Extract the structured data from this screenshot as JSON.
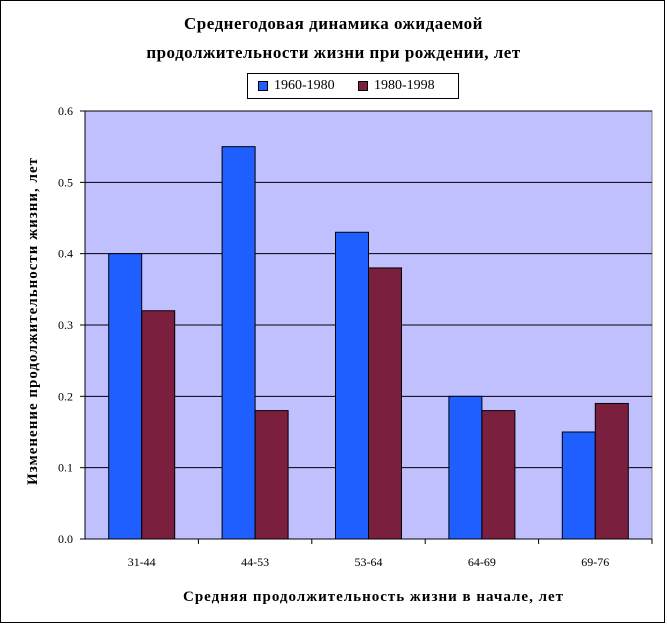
{
  "chart_data": {
    "type": "bar",
    "title": "Среднегодовая динамика ожидаемой продолжительности жизни при рождении, лет",
    "title_lines": [
      "Среднегодовая динамика ожидаемой",
      "продолжительности жизни при рождении, лет"
    ],
    "xlabel": "Средняя продолжительность жизни в начале, лет",
    "ylabel": "Изменение продолжительности жизни, лет",
    "categories": [
      "31-44",
      "44-53",
      "53-64",
      "64-69",
      "69-76"
    ],
    "series": [
      {
        "name": "1960-1980",
        "color": "#1f5fff",
        "values": [
          0.4,
          0.55,
          0.43,
          0.2,
          0.15
        ]
      },
      {
        "name": "1980-1998",
        "color": "#7a1f3d",
        "values": [
          0.32,
          0.18,
          0.38,
          0.18,
          0.19
        ]
      }
    ],
    "ylim": [
      0,
      0.6
    ],
    "yticks": [
      "0.0",
      "0.1",
      "0.2",
      "0.3",
      "0.4",
      "0.5",
      "0.6"
    ],
    "grid": true,
    "legend_position": "top-center",
    "plot_background": "#c0c0ff"
  }
}
